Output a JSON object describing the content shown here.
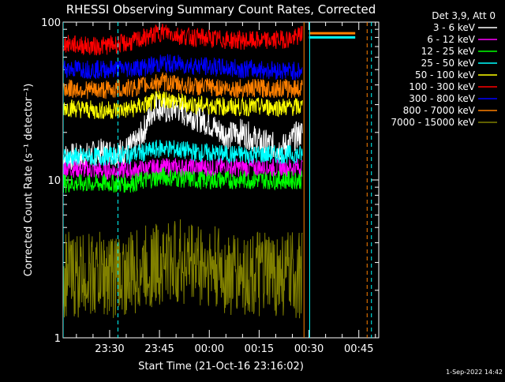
{
  "chart_data": {
    "type": "line",
    "title": "RHESSI Observing Summary Count Rates, Corrected",
    "xlabel": "Start Time (21-Oct-16 23:16:02)",
    "ylabel": "Corrected Count Rate (s⁻¹ detector⁻¹)",
    "y_scale": "log",
    "ylim": [
      1,
      100
    ],
    "x_unit": "minutes after 21-Oct-16 23:16:02",
    "xlim": [
      0,
      95
    ],
    "x_ticks": [
      {
        "label": "23:30",
        "x": 14
      },
      {
        "label": "23:45",
        "x": 29
      },
      {
        "label": "00:00",
        "x": 44
      },
      {
        "label": "00:15",
        "x": 59
      },
      {
        "label": "00:30",
        "x": 74
      },
      {
        "label": "00:45",
        "x": 89
      }
    ],
    "y_ticks": [
      {
        "label": "100",
        "y": 100
      },
      {
        "label": "10",
        "y": 10
      },
      {
        "label": "1",
        "y": 1
      }
    ],
    "legend_title": "Det 3,9, Att 0",
    "legend_position": "top-right outside plot",
    "series": [
      {
        "name": "3 - 6 keV",
        "color": "#ffffff",
        "x": [
          0,
          6,
          12,
          18,
          22,
          24,
          26,
          28,
          30,
          32,
          34,
          36,
          38,
          40,
          42,
          44,
          46,
          48,
          50,
          52,
          54,
          56,
          58,
          60,
          62,
          64,
          66,
          68,
          70,
          72
        ],
        "y": [
          14,
          14,
          15,
          15,
          17,
          20,
          25,
          30,
          28,
          27,
          29,
          27,
          26,
          25,
          24,
          23,
          21,
          20,
          19,
          20,
          20,
          19,
          18,
          17,
          17,
          16,
          16,
          17,
          19,
          20
        ]
      },
      {
        "name": "6 - 12 keV",
        "color": "#ff00ff",
        "x": [
          0,
          10,
          20,
          30,
          40,
          50,
          60,
          70,
          72
        ],
        "y": [
          12,
          11.5,
          11.5,
          12,
          12,
          12,
          12,
          12,
          12
        ]
      },
      {
        "name": "12 - 25 keV",
        "color": "#00ff00",
        "x": [
          0,
          10,
          20,
          30,
          40,
          50,
          60,
          70,
          72
        ],
        "y": [
          9.5,
          9.5,
          9.5,
          10.5,
          10,
          10,
          10,
          10,
          10
        ]
      },
      {
        "name": "25 - 50 keV",
        "color": "#00ffff",
        "x": [
          0,
          10,
          20,
          25,
          30,
          35,
          40,
          50,
          60,
          70,
          72,
          74,
          80,
          88
        ],
        "y": [
          14,
          14,
          14.5,
          15,
          16,
          15.5,
          15,
          14.5,
          14.5,
          14.5,
          14.5,
          80,
          80,
          80
        ]
      },
      {
        "name": "50 - 100 keV",
        "color": "#ffff00",
        "x": [
          0,
          10,
          20,
          25,
          30,
          35,
          40,
          50,
          60,
          70,
          72
        ],
        "y": [
          29,
          27.5,
          28,
          30,
          33,
          31,
          30,
          29,
          29,
          29,
          29
        ]
      },
      {
        "name": "100 - 300 keV",
        "color": "#ff0000",
        "x": [
          0,
          10,
          20,
          25,
          30,
          35,
          40,
          50,
          60,
          70,
          72
        ],
        "y": [
          73,
          70,
          74,
          80,
          87,
          82,
          80,
          77,
          76,
          79,
          85
        ]
      },
      {
        "name": "300 - 800 keV",
        "color": "#0000ff",
        "x": [
          0,
          10,
          20,
          25,
          30,
          35,
          40,
          50,
          60,
          70,
          72
        ],
        "y": [
          51,
          50,
          51,
          52,
          55,
          54,
          53,
          51,
          50,
          49,
          49
        ]
      },
      {
        "name": "800 - 7000 keV",
        "color": "#ff8000",
        "x": [
          0,
          10,
          20,
          25,
          30,
          35,
          40,
          50,
          60,
          70,
          72,
          74,
          80,
          88
        ],
        "y": [
          38,
          37,
          38,
          40,
          42,
          40,
          39,
          38,
          38,
          38,
          38,
          85,
          85,
          85
        ]
      },
      {
        "name": "7000 - 15000 keV",
        "color": "#808000",
        "x": [
          0,
          10,
          20,
          30,
          40,
          50,
          60,
          70,
          72
        ],
        "y": [
          2.5,
          2.5,
          2.5,
          3,
          3,
          2.5,
          2.5,
          2.5,
          2.5
        ]
      }
    ],
    "vertical_markers": [
      {
        "x": 0,
        "style": "solid",
        "color": "#00ffff"
      },
      {
        "x": 16.5,
        "style": "dashed",
        "color": "#00ffff"
      },
      {
        "x": 72.5,
        "style": "solid",
        "color": "#ff8000"
      },
      {
        "x": 74.2,
        "style": "solid",
        "color": "#00ffff"
      },
      {
        "x": 91.5,
        "style": "dashed",
        "color": "#ff8000"
      },
      {
        "x": 92.8,
        "style": "dashed",
        "color": "#00ffff"
      }
    ]
  },
  "footer_date": "1-Sep-2022 14:42"
}
